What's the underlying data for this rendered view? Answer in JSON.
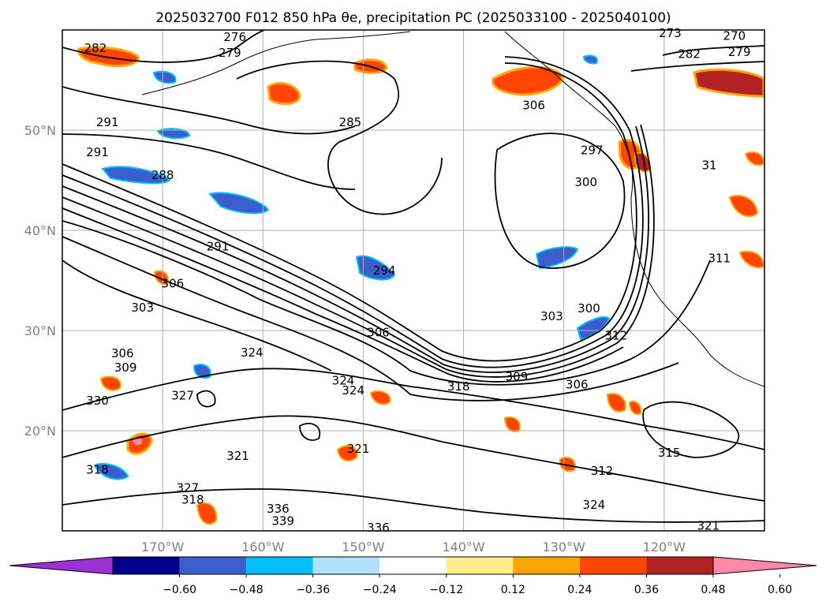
{
  "chart_data": {
    "type": "map",
    "title": "2025032700 F012 850 hPa θe, precipitation PC (2025033100 - 2025040100)",
    "lon_range": [
      -180,
      -110
    ],
    "lat_range": [
      10,
      60
    ],
    "lon_ticks": [
      {
        "value": -170,
        "label": "170°W"
      },
      {
        "value": -160,
        "label": "160°W"
      },
      {
        "value": -150,
        "label": "150°W"
      },
      {
        "value": -140,
        "label": "140°W"
      },
      {
        "value": -130,
        "label": "130°W"
      },
      {
        "value": -120,
        "label": "120°W"
      }
    ],
    "lat_ticks": [
      {
        "value": 20,
        "label": "20°N"
      },
      {
        "value": 30,
        "label": "30°N"
      },
      {
        "value": 40,
        "label": "40°N"
      },
      {
        "value": 50,
        "label": "50°N"
      }
    ],
    "grid": true,
    "colorbar": {
      "levels": [
        -0.6,
        -0.48,
        -0.36,
        -0.24,
        -0.12,
        0.12,
        0.24,
        0.36,
        0.48,
        0.6
      ],
      "tick_labels": [
        "−0.60",
        "−0.48",
        "−0.36",
        "−0.24",
        "−0.12",
        "0.12",
        "0.24",
        "0.36",
        "0.48",
        "0.60"
      ],
      "colors": [
        "#9b30d3",
        "#00008b",
        "#3a5fcd",
        "#00bfff",
        "#b0e2ff",
        "#ffffff",
        "#ffec8b",
        "#ffa500",
        "#ff4500",
        "#b22222",
        "#ff88a8"
      ],
      "extend": "both"
    },
    "contour_labels": [
      {
        "lon": -176.7,
        "lat": 58.2,
        "text": "282"
      },
      {
        "lon": -175.5,
        "lat": 50.8,
        "text": "291"
      },
      {
        "lon": -176.5,
        "lat": 47.8,
        "text": "291"
      },
      {
        "lon": -170.0,
        "lat": 45.5,
        "text": "288"
      },
      {
        "lon": -164.5,
        "lat": 38.4,
        "text": "291"
      },
      {
        "lon": -169.0,
        "lat": 34.7,
        "text": "306"
      },
      {
        "lon": -151.3,
        "lat": 50.8,
        "text": "285"
      },
      {
        "lon": -147.9,
        "lat": 36.0,
        "text": "294"
      },
      {
        "lon": -172.0,
        "lat": 32.3,
        "text": "303"
      },
      {
        "lon": -174.0,
        "lat": 27.7,
        "text": "306"
      },
      {
        "lon": -173.7,
        "lat": 26.3,
        "text": "309"
      },
      {
        "lon": -168.0,
        "lat": 23.5,
        "text": "327"
      },
      {
        "lon": -161.1,
        "lat": 27.8,
        "text": "324"
      },
      {
        "lon": -152.0,
        "lat": 25.0,
        "text": "324"
      },
      {
        "lon": -140.5,
        "lat": 24.4,
        "text": "318"
      },
      {
        "lon": -150.5,
        "lat": 18.2,
        "text": "321"
      },
      {
        "lon": -162.5,
        "lat": 17.5,
        "text": "321"
      },
      {
        "lon": -167.5,
        "lat": 14.3,
        "text": "327"
      },
      {
        "lon": -176.5,
        "lat": 16.1,
        "text": "318"
      },
      {
        "lon": -167.0,
        "lat": 13.1,
        "text": "318"
      },
      {
        "lon": -158.0,
        "lat": 11.0,
        "text": "339"
      },
      {
        "lon": -158.5,
        "lat": 12.2,
        "text": "336"
      },
      {
        "lon": -148.5,
        "lat": 10.3,
        "text": "336"
      },
      {
        "lon": -131.2,
        "lat": 31.4,
        "text": "303"
      },
      {
        "lon": -127.5,
        "lat": 32.2,
        "text": "300"
      },
      {
        "lon": -134.7,
        "lat": 25.4,
        "text": "309"
      },
      {
        "lon": -128.7,
        "lat": 24.6,
        "text": "306"
      },
      {
        "lon": -124.8,
        "lat": 29.5,
        "text": "312"
      },
      {
        "lon": -119.5,
        "lat": 17.8,
        "text": "315"
      },
      {
        "lon": -126.2,
        "lat": 16.0,
        "text": "312"
      },
      {
        "lon": -127.0,
        "lat": 12.6,
        "text": "324"
      },
      {
        "lon": -115.6,
        "lat": 10.5,
        "text": "321"
      },
      {
        "lon": -127.2,
        "lat": 48.0,
        "text": "297"
      },
      {
        "lon": -127.8,
        "lat": 44.8,
        "text": "300"
      },
      {
        "lon": -133.0,
        "lat": 52.5,
        "text": "306"
      },
      {
        "lon": -117.5,
        "lat": 57.6,
        "text": "282"
      },
      {
        "lon": -112.5,
        "lat": 57.8,
        "text": "279"
      },
      {
        "lon": -113.0,
        "lat": 59.4,
        "text": "270"
      },
      {
        "lon": -119.4,
        "lat": 59.7,
        "text": "273"
      },
      {
        "lon": -162.8,
        "lat": 59.3,
        "text": "276"
      },
      {
        "lon": -163.3,
        "lat": 57.7,
        "text": "279"
      },
      {
        "lon": -114.5,
        "lat": 37.2,
        "text": "311"
      },
      {
        "lon": -115.5,
        "lat": 46.5,
        "text": "31"
      },
      {
        "lon": -148.5,
        "lat": 29.8,
        "text": "306"
      },
      {
        "lon": -151.0,
        "lat": 24.0,
        "text": "324"
      },
      {
        "lon": -176.5,
        "lat": 23.0,
        "text": "330"
      }
    ]
  }
}
